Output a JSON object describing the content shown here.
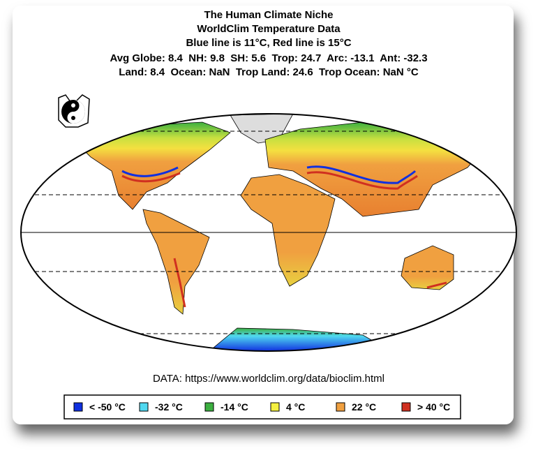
{
  "header": {
    "title_lines": [
      "The Human Climate Niche",
      "WorldClim Temperature Data",
      "Blue line is 11°C, Red line is 15°C"
    ],
    "stats_lines": [
      "Avg Globe: 8.4  NH: 9.8  SH: 5.6  Trop: 24.7  Arc: -13.1  Ant: -32.3",
      "Land: 8.4  Ocean: NaN  Trop Land: 24.6  Trop Ocean: NaN °C"
    ]
  },
  "source": "DATA: https://www.worldclim.org/data/bioclim.html",
  "legend": {
    "items": [
      {
        "label": "< -50 °C",
        "color": "#1030e0"
      },
      {
        "label": "-32 °C",
        "color": "#50d8f0"
      },
      {
        "label": "-14 °C",
        "color": "#3cb040"
      },
      {
        "label": "4 °C",
        "color": "#f4f040"
      },
      {
        "label": "22 °C",
        "color": "#f0a040"
      },
      {
        "label": "> 40 °C",
        "color": "#d03020"
      }
    ]
  }
}
